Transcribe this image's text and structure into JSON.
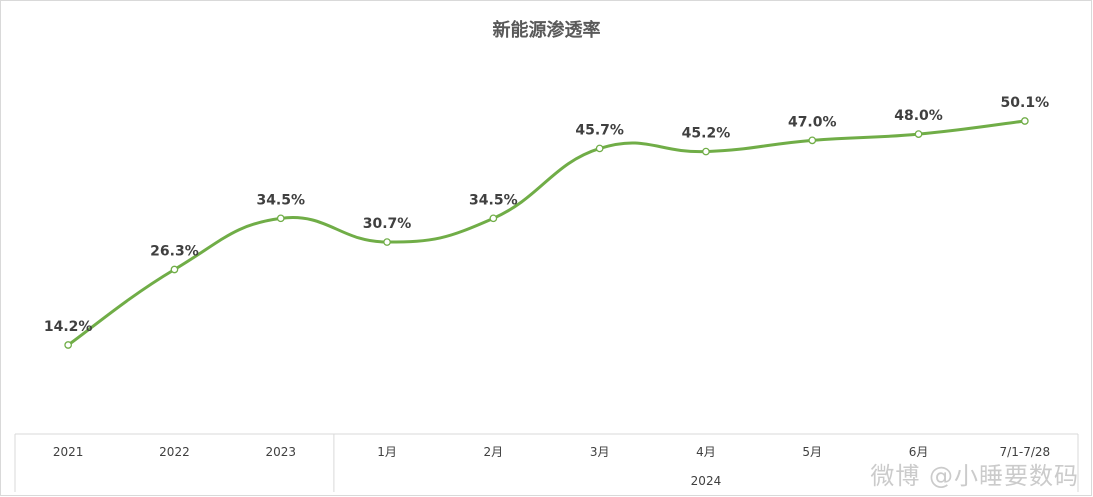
{
  "chart_data": {
    "type": "line",
    "title": "新能源渗透率",
    "categories": [
      "2021",
      "2022",
      "2023",
      "1月",
      "2月",
      "3月",
      "4月",
      "5月",
      "6月",
      "7/1-7/28"
    ],
    "category_group": {
      "label": "2024",
      "from_index": 3,
      "to_index": 9
    },
    "values": [
      14.2,
      26.3,
      34.5,
      30.7,
      34.5,
      45.7,
      45.2,
      47.0,
      48.0,
      50.1
    ],
    "data_labels": [
      "14.2%",
      "26.3%",
      "34.5%",
      "30.7%",
      "34.5%",
      "45.7%",
      "45.2%",
      "47.0%",
      "48.0%",
      "50.1%"
    ],
    "line_color": "#70ad47",
    "smooth": true,
    "markers": "hollow-circle",
    "grid": false,
    "legend": "none"
  },
  "watermark": "微博 @小睡要数码"
}
